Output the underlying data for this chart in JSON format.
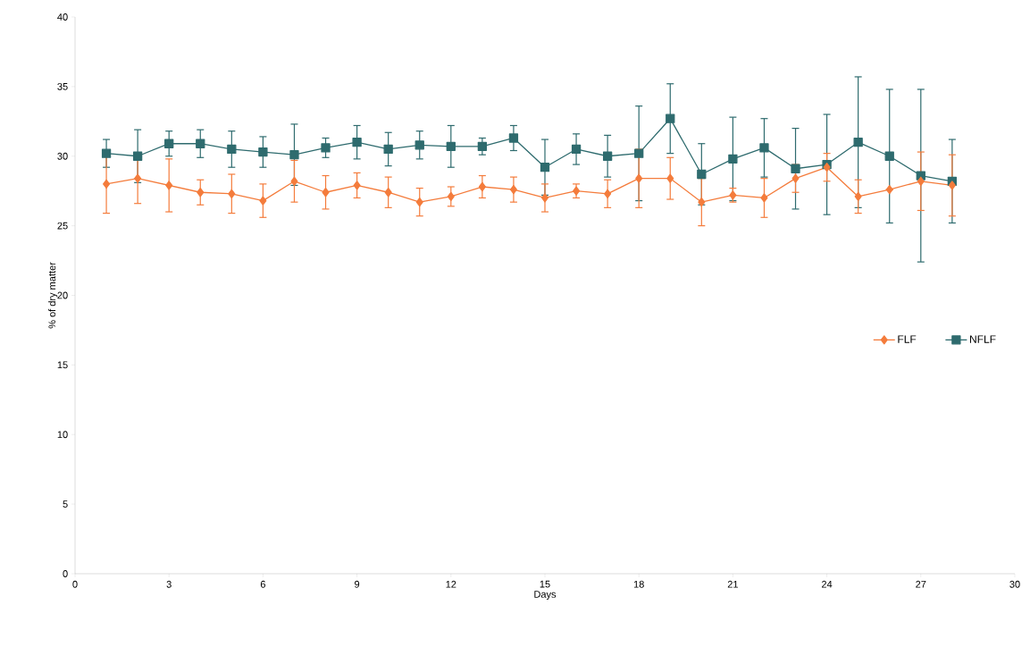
{
  "chart_data": {
    "type": "line",
    "xlabel": "Days",
    "ylabel": "% of dry matter",
    "x": [
      1,
      2,
      3,
      4,
      5,
      6,
      7,
      8,
      9,
      10,
      11,
      12,
      13,
      14,
      15,
      16,
      17,
      18,
      19,
      20,
      21,
      22,
      23,
      24,
      25,
      26,
      27,
      28
    ],
    "series": [
      {
        "name": "FLF",
        "color": "#f47c3c",
        "marker": "diamond",
        "values": [
          28.0,
          28.4,
          27.9,
          27.4,
          27.3,
          26.8,
          28.2,
          27.4,
          27.9,
          27.4,
          26.7,
          27.1,
          27.8,
          27.6,
          27.0,
          27.5,
          27.3,
          28.4,
          28.4,
          26.7,
          27.2,
          27.0,
          28.4,
          29.2,
          27.1,
          27.6,
          28.2,
          27.9
        ],
        "errors": [
          2.1,
          1.8,
          1.9,
          0.9,
          1.4,
          1.2,
          1.5,
          1.2,
          0.9,
          1.1,
          1.0,
          0.7,
          0.8,
          0.9,
          1.0,
          0.5,
          1.0,
          2.1,
          1.5,
          1.7,
          0.5,
          1.4,
          1.0,
          1.0,
          1.2,
          null,
          2.1,
          2.2
        ]
      },
      {
        "name": "NFLF",
        "color": "#2e6b6e",
        "marker": "square",
        "values": [
          30.2,
          30.0,
          30.9,
          30.9,
          30.5,
          30.3,
          30.1,
          30.6,
          31.0,
          30.5,
          30.8,
          30.7,
          30.7,
          31.3,
          29.2,
          30.5,
          30.0,
          30.2,
          32.7,
          28.7,
          29.8,
          30.6,
          29.1,
          29.4,
          31.0,
          30.0,
          28.6,
          28.2
        ],
        "errors": [
          1.0,
          1.9,
          0.9,
          1.0,
          1.3,
          1.1,
          2.2,
          0.7,
          1.2,
          1.2,
          1.0,
          1.5,
          0.6,
          0.9,
          2.0,
          1.1,
          1.5,
          3.4,
          2.5,
          2.2,
          3.0,
          2.1,
          2.9,
          3.6,
          4.7,
          4.8,
          6.2,
          3.0
        ]
      }
    ],
    "xlim": [
      0,
      30
    ],
    "xticks": [
      0,
      3,
      6,
      9,
      12,
      15,
      18,
      21,
      24,
      27,
      30
    ],
    "ylim": [
      0,
      40
    ],
    "yticks": [
      0,
      5,
      10,
      15,
      20,
      25,
      30,
      35,
      40
    ],
    "grid": false,
    "legend": "right",
    "line_style": "solid"
  }
}
